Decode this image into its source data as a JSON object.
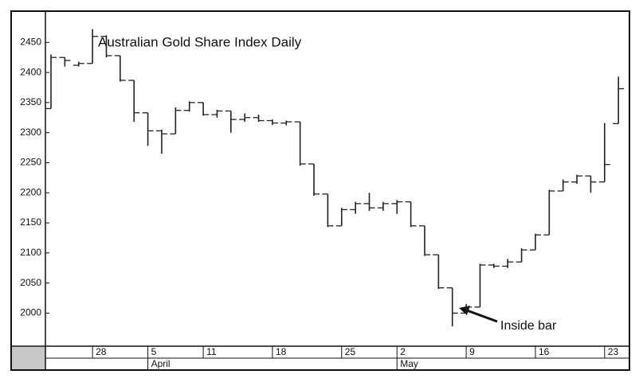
{
  "chart_data": {
    "type": "ohlc",
    "title": "Australian Gold Share Index Daily",
    "annotation": "Inside bar",
    "color": "#222222",
    "categories": [
      null,
      null,
      null,
      "28",
      null,
      null,
      null,
      "5",
      null,
      null,
      null,
      "11",
      null,
      null,
      null,
      null,
      "18",
      null,
      null,
      null,
      null,
      "25",
      null,
      null,
      null,
      "2",
      null,
      null,
      null,
      null,
      "9",
      null,
      null,
      null,
      null,
      "16",
      null,
      null,
      null,
      null,
      "23",
      null
    ],
    "months": [
      null,
      null,
      null,
      null,
      null,
      null,
      null,
      "April",
      null,
      null,
      null,
      null,
      null,
      null,
      null,
      null,
      null,
      null,
      null,
      null,
      null,
      null,
      null,
      null,
      null,
      "May",
      null,
      null,
      null,
      null,
      null,
      null,
      null,
      null,
      null,
      null,
      null,
      null,
      null,
      null,
      null,
      null
    ],
    "open": [
      2340,
      2425,
      2412,
      2415,
      2460,
      2428,
      2387,
      2333,
      2303,
      2298,
      2337,
      2350,
      2330,
      2336,
      2322,
      2325,
      2320,
      2316,
      2318,
      2248,
      2198,
      2145,
      2172,
      2182,
      2175,
      2182,
      2185,
      2145,
      2097,
      2042,
      2000,
      2010,
      2080,
      2078,
      2085,
      2105,
      2130,
      2203,
      2218,
      2228,
      2218,
      2315
    ],
    "high": [
      2430,
      2425,
      2418,
      2472,
      2462,
      2428,
      2387,
      2333,
      2305,
      2342,
      2352,
      2350,
      2338,
      2336,
      2332,
      2330,
      2322,
      2320,
      2318,
      2248,
      2198,
      2175,
      2185,
      2200,
      2185,
      2188,
      2185,
      2145,
      2097,
      2042,
      2015,
      2082,
      2082,
      2090,
      2108,
      2132,
      2205,
      2222,
      2230,
      2228,
      2316,
      2393
    ],
    "low": [
      2340,
      2410,
      2410,
      2415,
      2425,
      2385,
      2318,
      2278,
      2265,
      2298,
      2335,
      2328,
      2325,
      2300,
      2318,
      2318,
      2313,
      2312,
      2245,
      2195,
      2143,
      2145,
      2165,
      2170,
      2170,
      2165,
      2143,
      2095,
      2040,
      1978,
      2000,
      2010,
      2075,
      2075,
      2085,
      2105,
      2130,
      2203,
      2215,
      2200,
      2218,
      2315
    ],
    "close": [
      2425,
      2420,
      2415,
      2460,
      2428,
      2387,
      2333,
      2303,
      2298,
      2337,
      2350,
      2330,
      2336,
      2322,
      2325,
      2320,
      2316,
      2318,
      2248,
      2198,
      2145,
      2172,
      2182,
      2175,
      2182,
      2185,
      2145,
      2097,
      2042,
      2000,
      2010,
      2080,
      2078,
      2085,
      2105,
      2130,
      2203,
      2218,
      2228,
      2218,
      2247,
      2373
    ],
    "ylim": [
      1945,
      2502
    ],
    "yticks": [
      2000,
      2050,
      2100,
      2150,
      2200,
      2250,
      2300,
      2350,
      2400,
      2450
    ]
  }
}
